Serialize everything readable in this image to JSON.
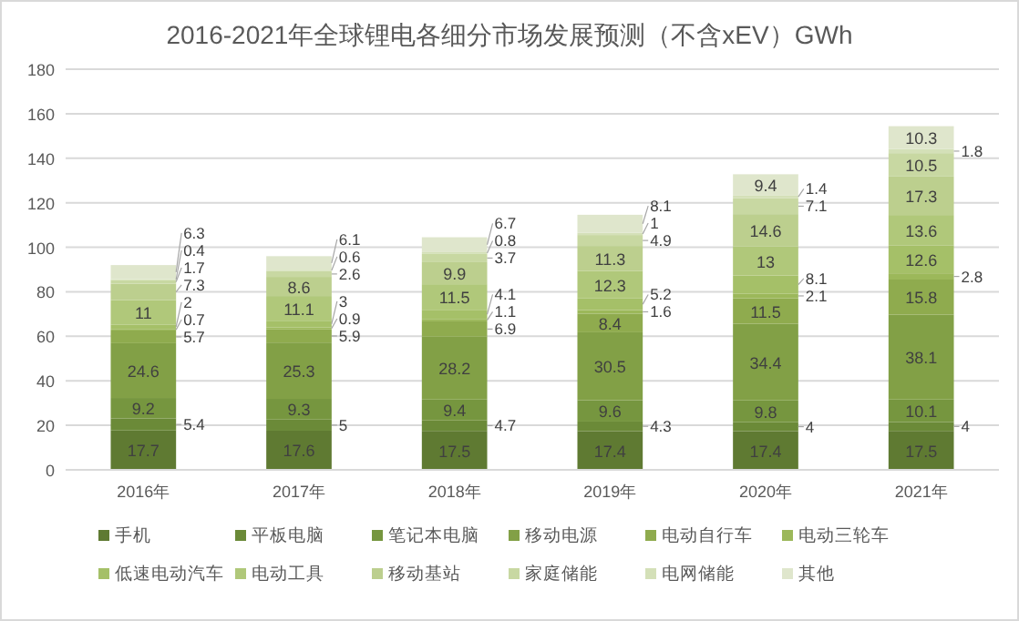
{
  "chart_data": {
    "type": "bar",
    "stacked": true,
    "title": "2016-2021年全球锂电各细分市场发展预测（不含xEV）GWh",
    "categories": [
      "2016年",
      "2017年",
      "2018年",
      "2019年",
      "2020年",
      "2021年"
    ],
    "series": [
      {
        "name": "手机",
        "color": "#5f7a32",
        "values": [
          17.7,
          17.6,
          17.5,
          17.4,
          17.4,
          17.5
        ]
      },
      {
        "name": "平板电脑",
        "color": "#6b8a38",
        "values": [
          5.4,
          5,
          4.7,
          4.3,
          4,
          4
        ]
      },
      {
        "name": "笔记本电脑",
        "color": "#76963f",
        "values": [
          9.2,
          9.3,
          9.4,
          9.6,
          9.8,
          10.1
        ]
      },
      {
        "name": "移动电源",
        "color": "#82a046",
        "values": [
          24.6,
          25.3,
          28.2,
          30.5,
          34.4,
          38.1
        ]
      },
      {
        "name": "电动自行车",
        "color": "#8fab4e",
        "values": [
          5.7,
          5.9,
          6.9,
          8.4,
          11.5,
          15.8
        ]
      },
      {
        "name": "电动三轮车",
        "color": "#9cb85a",
        "values": [
          0.7,
          0.9,
          1.1,
          1.6,
          2.1,
          2.8
        ]
      },
      {
        "name": "低速电动汽车",
        "color": "#a5c068",
        "values": [
          2,
          3,
          4.1,
          5.2,
          8.1,
          12.6
        ]
      },
      {
        "name": "电动工具",
        "color": "#b0c87a",
        "values": [
          11,
          11.1,
          11.5,
          12.3,
          13,
          13.6
        ]
      },
      {
        "name": "移动基站",
        "color": "#bccf8e",
        "values": [
          7.3,
          8.6,
          9.9,
          11.3,
          14.6,
          17.3
        ]
      },
      {
        "name": "家庭储能",
        "color": "#c8d8a2",
        "values": [
          1.7,
          2.6,
          3.7,
          4.9,
          7.1,
          10.5
        ]
      },
      {
        "name": "电网储能",
        "color": "#d4e0b8",
        "values": [
          0.4,
          0.6,
          0.8,
          1,
          1.4,
          1.8
        ]
      },
      {
        "name": "其他",
        "color": "#dfe6cc",
        "values": [
          6.3,
          6.1,
          6.7,
          8.1,
          9.4,
          10.3
        ]
      }
    ],
    "ylim": [
      0,
      180
    ],
    "yticks": [
      0,
      20,
      40,
      60,
      80,
      100,
      120,
      140,
      160,
      180
    ],
    "grid": "y",
    "legend": "bottom",
    "data_labels": true
  }
}
